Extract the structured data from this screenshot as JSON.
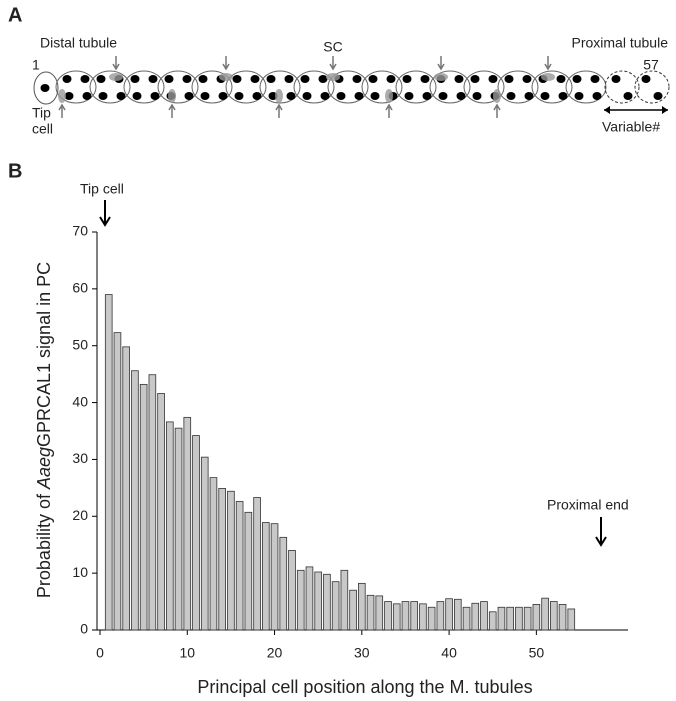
{
  "diagram": {
    "panel_label": "A",
    "distal": "Distal tubule",
    "sc": "SC",
    "proximal": "Proximal tubule",
    "first": "1",
    "last": "57",
    "tip": [
      "Tip",
      "cell"
    ],
    "variable": "Variable#"
  },
  "chart_data": {
    "type": "bar",
    "panel_label": "B",
    "xlabel": "Principal cell position along the M. tubules",
    "ylabel": [
      "Probability of ",
      "Aaeg",
      "GPRCAL1 signal in PC"
    ],
    "annotations": [
      "Tip cell",
      "Proximal end"
    ],
    "x": [
      1,
      2,
      3,
      4,
      5,
      6,
      7,
      8,
      9,
      10,
      11,
      12,
      13,
      14,
      15,
      16,
      17,
      18,
      19,
      20,
      21,
      22,
      23,
      24,
      25,
      26,
      27,
      28,
      29,
      30,
      31,
      32,
      33,
      34,
      35,
      36,
      37,
      38,
      39,
      40,
      41,
      42,
      43,
      44,
      45,
      46,
      47,
      48,
      49,
      50,
      51,
      52,
      53,
      54
    ],
    "values": [
      59,
      52.3,
      49.8,
      45.6,
      43.2,
      44.9,
      41.6,
      36.6,
      35.5,
      37.4,
      34.2,
      30.4,
      26.8,
      24.9,
      24.4,
      22.6,
      20.7,
      23.3,
      18.9,
      18.7,
      16.3,
      14,
      10.5,
      11.1,
      10.2,
      9.8,
      8.5,
      10.5,
      7,
      8.2,
      6.1,
      6,
      5,
      4.6,
      5,
      5,
      4.6,
      4,
      5,
      5.5,
      5.4,
      4,
      4.7,
      5,
      3.2,
      4,
      4,
      4,
      4,
      4.5,
      5.6,
      5,
      4.5,
      3.7
    ],
    "color": "#c8c8c8",
    "xlim": [
      0,
      60.5
    ],
    "xticks": [
      0,
      10,
      20,
      30,
      40,
      50
    ],
    "ylim": [
      0,
      70
    ],
    "yticks": [
      0,
      10,
      20,
      30,
      40,
      50,
      60,
      70
    ]
  }
}
